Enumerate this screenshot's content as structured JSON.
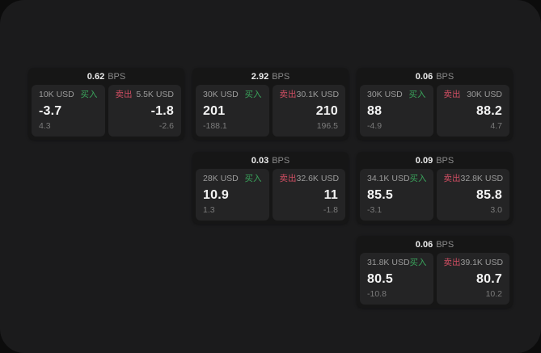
{
  "labels": {
    "bps": "BPS",
    "buy": "买入",
    "sell": "卖出"
  },
  "colors": {
    "background": "#0c0c0c",
    "window_bg": "#1b1b1c",
    "card_bg": "#161616",
    "panel_bg": "#242425",
    "text_primary": "#f4f4f4",
    "text_muted": "#9b9b9b",
    "buy_green": "#3aa45c",
    "sell_red": "#d14e63"
  },
  "cards": [
    {
      "bps": "0.62",
      "buy": {
        "amount": "10K USD",
        "value": "-3.7",
        "delta": "4.3"
      },
      "sell": {
        "amount": "5.5K USD",
        "value": "-1.8",
        "delta": "-2.6"
      }
    },
    {
      "bps": "2.92",
      "buy": {
        "amount": "30K USD",
        "value": "201",
        "delta": "-188.1"
      },
      "sell": {
        "amount": "30.1K USD",
        "value": "210",
        "delta": "196.5"
      }
    },
    {
      "bps": "0.06",
      "buy": {
        "amount": "30K USD",
        "value": "88",
        "delta": "-4.9"
      },
      "sell": {
        "amount": "30K USD",
        "value": "88.2",
        "delta": "4.7"
      }
    },
    {
      "bps": "0.03",
      "buy": {
        "amount": "28K USD",
        "value": "10.9",
        "delta": "1.3"
      },
      "sell": {
        "amount": "32.6K USD",
        "value": "11",
        "delta": "-1.8"
      }
    },
    {
      "bps": "0.09",
      "buy": {
        "amount": "34.1K USD",
        "value": "85.5",
        "delta": "-3.1"
      },
      "sell": {
        "amount": "32.8K USD",
        "value": "85.8",
        "delta": "3.0"
      }
    },
    {
      "bps": "0.06",
      "buy": {
        "amount": "31.8K USD",
        "value": "80.5",
        "delta": "-10.8"
      },
      "sell": {
        "amount": "39.1K USD",
        "value": "80.7",
        "delta": "10.2"
      }
    }
  ]
}
